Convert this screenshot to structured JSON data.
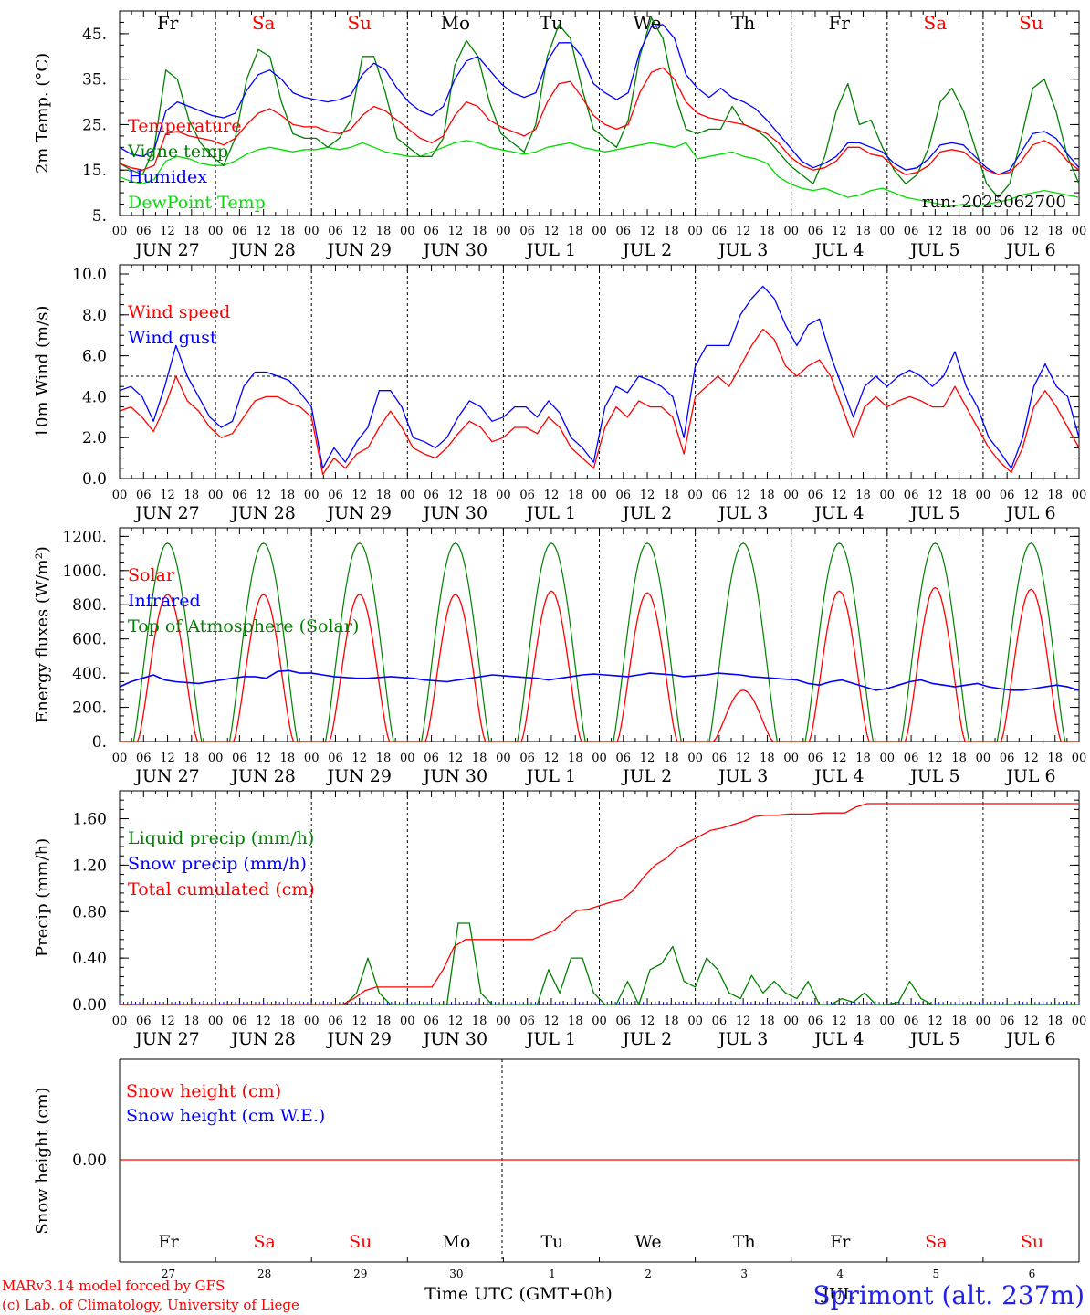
{
  "days": {
    "short": [
      "Fr",
      "Sa",
      "Su",
      "Mo",
      "Tu",
      "We",
      "Th",
      "Fr",
      "Sa",
      "Su"
    ],
    "weekend": [
      false,
      true,
      true,
      false,
      false,
      false,
      false,
      false,
      true,
      true
    ],
    "dates": [
      "JUN 27",
      "JUN 28",
      "JUN 29",
      "JUN 30",
      "JUL  1",
      "JUL  2",
      "JUL  3",
      "JUL  4",
      "JUL  5",
      "JUL  6"
    ],
    "day_numbers": [
      "27",
      "28",
      "29",
      "30",
      "1",
      "2",
      "3",
      "4",
      "5",
      "6"
    ],
    "hour_ticks": [
      "00",
      "06",
      "12",
      "18"
    ],
    "end_hour": "00"
  },
  "colors": {
    "red": "#ff0000",
    "blue": "#0000ff",
    "green": "#008000",
    "lightgreen": "#00dd00",
    "weekend": "#ff0000",
    "label_blue": "#2222ee"
  },
  "footer": {
    "model": "MARv3.14 model forced by GFS",
    "credit": "(c) Lab. of Climatology, University of Liege",
    "xlabel": "Time UTC (GMT+0h)",
    "month": "JUL",
    "station": "Sprimont (alt. 237m)"
  },
  "chart_data": [
    {
      "type": "line",
      "ylabel": "2m Temp. (°C)",
      "ylim": [
        5,
        50
      ],
      "yticks": [
        "5.",
        "15.",
        "25.",
        "35.",
        "45."
      ],
      "annotation": "run: 2025062700",
      "series": [
        {
          "name": "Temperature",
          "color": "red",
          "values": [
            16.5,
            15.5,
            15.0,
            16.0,
            23.0,
            23.5,
            22.5,
            22.0,
            21.5,
            20.5,
            22.0,
            25.0,
            27.5,
            28.5,
            27.0,
            25.0,
            24.5,
            24.5,
            23.5,
            23.0,
            24.0,
            27.0,
            29.0,
            28.0,
            26.0,
            24.0,
            22.0,
            21.0,
            22.5,
            27.0,
            30.0,
            29.0,
            26.0,
            24.5,
            23.5,
            22.5,
            24.0,
            30.0,
            34.0,
            34.5,
            31.0,
            27.0,
            25.0,
            24.0,
            25.0,
            32.0,
            36.5,
            37.5,
            35.0,
            30.0,
            27.5,
            26.5,
            26.0,
            25.5,
            25.0,
            24.0,
            23.0,
            21.0,
            18.0,
            16.0,
            15.0,
            15.5,
            17.0,
            20.0,
            20.0,
            18.5,
            18.0,
            15.5,
            14.0,
            14.5,
            16.0,
            19.0,
            19.5,
            19.0,
            17.0,
            15.0,
            14.0,
            14.5,
            17.0,
            20.5,
            21.5,
            20.0,
            17.0,
            15.0
          ]
        },
        {
          "name": "Vigne temp",
          "color": "green",
          "values": [
            16.5,
            15.0,
            14.0,
            20.0,
            37.0,
            35.0,
            26.0,
            21.0,
            18.0,
            16.0,
            22.0,
            35.0,
            41.5,
            40.0,
            30.0,
            23.0,
            22.0,
            22.0,
            20.0,
            22.0,
            26.0,
            40.0,
            40.0,
            32.0,
            22.0,
            20.0,
            18.0,
            18.0,
            22.0,
            38.0,
            43.5,
            40.0,
            30.0,
            23.0,
            21.0,
            19.0,
            25.0,
            40.0,
            47.0,
            44.0,
            33.0,
            24.0,
            22.0,
            20.0,
            26.0,
            40.0,
            48.5,
            44.0,
            32.0,
            24.0,
            23.0,
            24.0,
            24.0,
            29.0,
            25.0,
            24.0,
            22.0,
            19.0,
            16.0,
            14.0,
            12.0,
            18.0,
            28.0,
            34.0,
            25.0,
            26.0,
            20.0,
            15.0,
            12.0,
            14.0,
            20.0,
            30.0,
            33.0,
            28.0,
            20.0,
            12.0,
            9.0,
            12.0,
            22.0,
            33.0,
            35.0,
            28.0,
            18.0,
            12.0
          ]
        },
        {
          "name": "Humidex",
          "color": "blue",
          "values": [
            20.0,
            18.5,
            18.0,
            19.5,
            28.0,
            30.0,
            29.0,
            28.0,
            27.0,
            26.5,
            27.5,
            32.5,
            36.0,
            37.0,
            35.0,
            32.0,
            31.0,
            30.5,
            30.0,
            30.5,
            31.5,
            36.0,
            38.5,
            37.0,
            33.0,
            30.0,
            28.0,
            27.0,
            29.0,
            35.0,
            39.0,
            40.0,
            37.0,
            34.0,
            32.0,
            31.0,
            32.0,
            39.0,
            43.0,
            43.0,
            40.0,
            34.0,
            32.0,
            30.5,
            32.0,
            41.0,
            46.5,
            47.0,
            44.0,
            36.0,
            33.0,
            31.0,
            33.0,
            31.0,
            30.0,
            28.5,
            26.0,
            23.0,
            20.0,
            17.0,
            15.5,
            16.5,
            18.0,
            21.0,
            21.0,
            20.0,
            19.0,
            16.5,
            15.0,
            15.5,
            17.5,
            20.5,
            21.0,
            20.5,
            18.0,
            15.5,
            14.0,
            15.0,
            19.0,
            23.0,
            23.5,
            22.0,
            18.5,
            15.5
          ]
        },
        {
          "name": "DewPoint Temp",
          "color": "lightgreen",
          "values": [
            13.5,
            12.5,
            12.0,
            13.0,
            17.0,
            18.0,
            17.5,
            16.5,
            16.0,
            16.0,
            17.0,
            18.5,
            19.5,
            20.0,
            19.5,
            19.0,
            19.5,
            19.5,
            20.0,
            19.5,
            20.0,
            21.0,
            20.0,
            19.0,
            18.5,
            18.0,
            18.0,
            19.0,
            20.0,
            21.0,
            21.5,
            21.0,
            20.0,
            19.5,
            19.0,
            18.5,
            19.0,
            20.0,
            20.5,
            21.0,
            20.0,
            19.5,
            19.0,
            19.5,
            20.0,
            20.5,
            21.0,
            20.5,
            20.0,
            21.0,
            17.5,
            18.0,
            18.5,
            19.0,
            18.0,
            17.5,
            16.5,
            13.5,
            12.0,
            11.0,
            10.5,
            11.0,
            10.0,
            9.0,
            9.5,
            10.5,
            11.0,
            10.0,
            9.0,
            8.5,
            8.0,
            7.5,
            7.0,
            7.5,
            7.0,
            7.5,
            8.0,
            8.5,
            9.5,
            10.0,
            10.5,
            10.0,
            9.5,
            9.0
          ]
        }
      ]
    },
    {
      "type": "line",
      "ylabel": "10m Wind (m/s)",
      "ylim": [
        0,
        10
      ],
      "yticks": [
        "0.0",
        "2.0",
        "4.0",
        "6.0",
        "8.0",
        "10.0"
      ],
      "reference_line": 5,
      "series": [
        {
          "name": "Wind speed",
          "color": "red",
          "values": [
            3.3,
            3.5,
            3.0,
            2.3,
            3.5,
            5.0,
            3.8,
            3.3,
            2.5,
            2.0,
            2.2,
            3.0,
            3.8,
            4.0,
            4.0,
            3.7,
            3.5,
            3.0,
            0.2,
            1.0,
            0.5,
            1.2,
            1.5,
            2.5,
            3.3,
            2.5,
            1.5,
            1.2,
            1.0,
            1.5,
            2.2,
            2.8,
            2.5,
            1.8,
            2.0,
            2.5,
            2.5,
            2.2,
            3.0,
            2.5,
            1.5,
            1.0,
            0.5,
            2.5,
            3.5,
            3.0,
            3.8,
            3.5,
            3.5,
            3.0,
            1.2,
            4.0,
            4.5,
            5.0,
            4.5,
            5.5,
            6.5,
            7.3,
            6.8,
            5.5,
            5.0,
            5.5,
            5.8,
            5.0,
            3.5,
            2.0,
            3.5,
            4.0,
            3.5,
            3.8,
            4.0,
            3.8,
            3.5,
            3.5,
            4.5,
            3.5,
            2.5,
            1.5,
            0.8,
            0.3,
            1.5,
            3.5,
            4.3,
            3.5,
            2.5,
            1.5
          ]
        },
        {
          "name": "Wind gust",
          "color": "blue",
          "values": [
            4.3,
            4.5,
            4.0,
            2.8,
            4.5,
            6.5,
            5.0,
            4.0,
            3.0,
            2.5,
            2.8,
            4.5,
            5.2,
            5.2,
            5.0,
            4.8,
            4.2,
            3.5,
            0.5,
            1.5,
            0.8,
            1.8,
            2.5,
            4.3,
            4.3,
            3.5,
            2.0,
            1.8,
            1.5,
            2.0,
            3.0,
            3.8,
            3.5,
            2.8,
            3.0,
            3.5,
            3.5,
            3.0,
            3.8,
            3.2,
            2.0,
            1.5,
            0.8,
            3.5,
            4.5,
            4.2,
            5.0,
            4.8,
            4.5,
            4.0,
            2.0,
            5.5,
            6.5,
            6.5,
            6.5,
            8.0,
            8.8,
            9.4,
            8.8,
            7.5,
            6.5,
            7.5,
            7.8,
            6.0,
            4.5,
            3.0,
            4.5,
            5.0,
            4.5,
            5.0,
            5.3,
            5.0,
            4.5,
            5.0,
            6.2,
            4.5,
            3.5,
            2.0,
            1.3,
            0.5,
            2.0,
            4.5,
            5.6,
            4.5,
            4.0,
            2.0
          ]
        }
      ]
    },
    {
      "type": "line",
      "ylabel": "Energy fluxes (W/m²)",
      "ylim": [
        0,
        1250
      ],
      "yticks": [
        "0.",
        "200.",
        "400.",
        "600.",
        "800.",
        "1000.",
        "1200."
      ],
      "series": [
        {
          "name": "Solar",
          "color": "red"
        },
        {
          "name": "Infrared",
          "color": "blue"
        },
        {
          "name": "Top of Atmosphere (Solar)",
          "color": "green",
          "daily_peak": 1160
        },
        {
          "daily_peak_solar": [
            860,
            860,
            860,
            860,
            880,
            870,
            300,
            880,
            900,
            890
          ]
        },
        {
          "infrared_values": [
            320,
            350,
            370,
            390,
            360,
            350,
            345,
            340,
            350,
            360,
            370,
            380,
            380,
            370,
            410,
            415,
            400,
            400,
            390,
            380,
            375,
            370,
            370,
            375,
            380,
            375,
            370,
            360,
            355,
            350,
            360,
            370,
            380,
            390,
            385,
            380,
            375,
            370,
            360,
            370,
            380,
            390,
            395,
            390,
            385,
            380,
            390,
            400,
            395,
            390,
            380,
            385,
            390,
            400,
            395,
            390,
            380,
            375,
            370,
            365,
            360,
            340,
            330,
            350,
            360,
            340,
            320,
            300,
            310,
            330,
            350,
            360,
            340,
            330,
            320,
            330,
            340,
            320,
            310,
            300,
            300,
            310,
            320,
            330,
            320,
            300
          ]
        }
      ]
    },
    {
      "type": "line",
      "ylabel": "Precip (mm/h)",
      "ylim": [
        0,
        1.84
      ],
      "yticks": [
        "0.00",
        "0.40",
        "0.80",
        "1.20",
        "1.60"
      ],
      "series": [
        {
          "name": "Liquid precip (mm/h)",
          "color": "green",
          "values": [
            0,
            0,
            0,
            0,
            0,
            0,
            0,
            0,
            0,
            0,
            0,
            0,
            0,
            0,
            0,
            0,
            0,
            0,
            0,
            0,
            0,
            0.1,
            0.4,
            0.1,
            0,
            0,
            0,
            0,
            0,
            0,
            0.7,
            0.7,
            0.1,
            0,
            0,
            0,
            0,
            0,
            0.3,
            0.1,
            0.4,
            0.4,
            0.1,
            0,
            0,
            0.2,
            0,
            0.3,
            0.35,
            0.5,
            0.2,
            0.15,
            0.4,
            0.3,
            0.1,
            0.05,
            0.25,
            0.1,
            0.2,
            0.1,
            0.05,
            0.2,
            0,
            0,
            0.05,
            0.02,
            0.1,
            0,
            0,
            0.02,
            0.2,
            0.05,
            0,
            0,
            0,
            0,
            0,
            0,
            0,
            0,
            0,
            0,
            0,
            0,
            0,
            0
          ]
        },
        {
          "name": "Snow precip (mm/h)",
          "color": "blue",
          "values": []
        },
        {
          "name": "Total cumulated (cm)",
          "color": "red",
          "values": [
            0,
            0,
            0,
            0,
            0,
            0,
            0,
            0,
            0,
            0,
            0,
            0,
            0,
            0,
            0,
            0,
            0,
            0,
            0,
            0,
            0,
            0.05,
            0.12,
            0.15,
            0.15,
            0.15,
            0.15,
            0.15,
            0.15,
            0.3,
            0.5,
            0.56,
            0.56,
            0.56,
            0.56,
            0.56,
            0.56,
            0.56,
            0.6,
            0.64,
            0.74,
            0.81,
            0.82,
            0.85,
            0.88,
            0.9,
            0.98,
            1.1,
            1.2,
            1.26,
            1.35,
            1.4,
            1.45,
            1.5,
            1.52,
            1.55,
            1.58,
            1.62,
            1.63,
            1.63,
            1.64,
            1.64,
            1.64,
            1.65,
            1.65,
            1.65,
            1.7,
            1.73,
            1.73,
            1.73,
            1.73,
            1.73,
            1.73,
            1.73,
            1.73,
            1.73,
            1.73,
            1.73,
            1.73,
            1.73,
            1.73,
            1.73,
            1.73,
            1.73,
            1.73,
            1.73,
            1.73
          ]
        }
      ]
    },
    {
      "type": "line",
      "ylabel": "Snow height (cm)",
      "yticks": [
        "0.00"
      ],
      "series": [
        {
          "name": "Snow height (cm)",
          "color": "red",
          "values": [
            0,
            0
          ]
        },
        {
          "name": "Snow height (cm W.E.)",
          "color": "blue",
          "values": []
        }
      ]
    }
  ]
}
